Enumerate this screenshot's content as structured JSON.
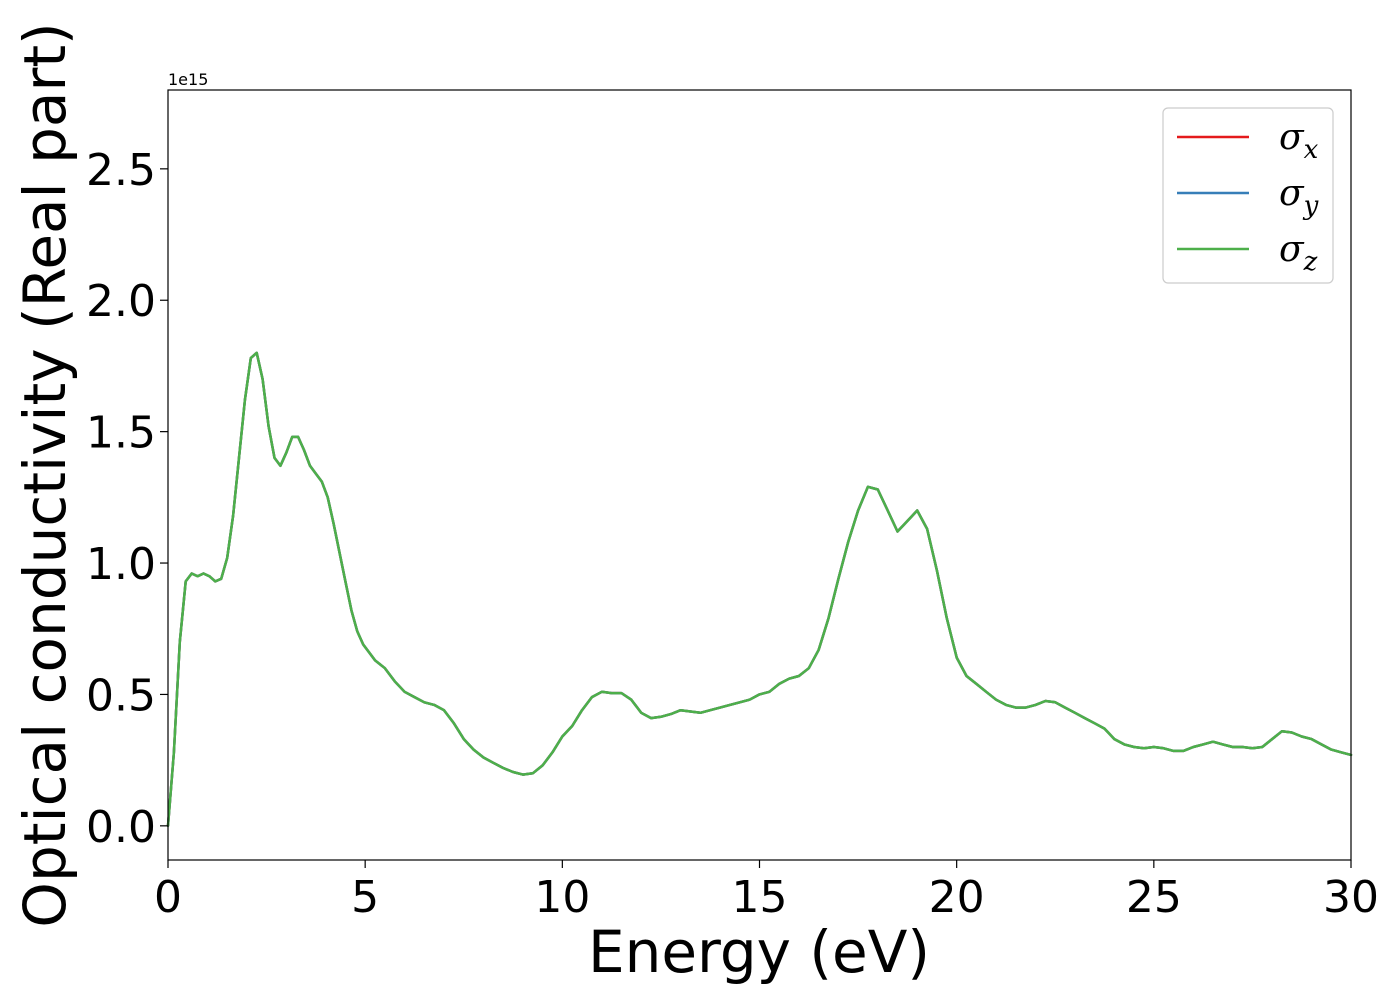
{
  "chart_data": {
    "type": "line",
    "xlabel": "Energy (eV)",
    "ylabel": "Optical conductivity (Real part)",
    "y_offset_label": "1e15",
    "xlim": [
      0,
      30
    ],
    "ylim": [
      -0.13,
      2.8
    ],
    "xticks": [
      0,
      5,
      10,
      15,
      20,
      25,
      30
    ],
    "yticks": [
      0.0,
      0.5,
      1.0,
      1.5,
      2.0,
      2.5
    ],
    "xtick_labels": [
      "0",
      "5",
      "10",
      "15",
      "20",
      "25",
      "30"
    ],
    "ytick_labels": [
      "0.0",
      "0.5",
      "1.0",
      "1.5",
      "2.0",
      "2.5"
    ],
    "grid": false,
    "legend_position": "top-right",
    "colors": {
      "sigma_x": "#e41a1c",
      "sigma_y": "#377eb8",
      "sigma_z": "#4daf4a"
    },
    "x": [
      0,
      0.15,
      0.3,
      0.45,
      0.6,
      0.75,
      0.9,
      1.05,
      1.2,
      1.35,
      1.5,
      1.65,
      1.8,
      1.95,
      2.1,
      2.25,
      2.4,
      2.55,
      2.7,
      2.85,
      3.0,
      3.15,
      3.3,
      3.45,
      3.6,
      3.75,
      3.9,
      4.05,
      4.2,
      4.35,
      4.5,
      4.65,
      4.8,
      4.95,
      5.1,
      5.25,
      5.5,
      5.75,
      6.0,
      6.25,
      6.5,
      6.75,
      7.0,
      7.25,
      7.5,
      7.75,
      8.0,
      8.25,
      8.5,
      8.75,
      9.0,
      9.25,
      9.5,
      9.75,
      10.0,
      10.25,
      10.5,
      10.75,
      11.0,
      11.25,
      11.5,
      11.75,
      12.0,
      12.25,
      12.5,
      12.75,
      13.0,
      13.25,
      13.5,
      13.75,
      14.0,
      14.25,
      14.5,
      14.75,
      15.0,
      15.25,
      15.5,
      15.75,
      16.0,
      16.25,
      16.5,
      16.75,
      17.0,
      17.25,
      17.5,
      17.75,
      18.0,
      18.25,
      18.5,
      18.75,
      19.0,
      19.25,
      19.5,
      19.75,
      20.0,
      20.25,
      20.5,
      20.75,
      21.0,
      21.25,
      21.5,
      21.75,
      22.0,
      22.25,
      22.5,
      22.75,
      23.0,
      23.25,
      23.5,
      23.75,
      24.0,
      24.25,
      24.5,
      24.75,
      25.0,
      25.25,
      25.5,
      25.75,
      26.0,
      26.25,
      26.5,
      26.75,
      27.0,
      27.25,
      27.5,
      27.75,
      28.0,
      28.25,
      28.5,
      28.75,
      29.0,
      29.25,
      29.5,
      29.75,
      30.0
    ],
    "series": [
      {
        "name": "σx",
        "label_base": "σ",
        "label_sub": "x",
        "values": [
          0.0,
          0.28,
          0.7,
          0.93,
          0.96,
          0.95,
          0.96,
          0.95,
          0.93,
          0.94,
          1.02,
          1.18,
          1.4,
          1.62,
          1.78,
          1.8,
          1.7,
          1.52,
          1.4,
          1.37,
          1.42,
          1.48,
          1.48,
          1.43,
          1.37,
          1.34,
          1.31,
          1.25,
          1.15,
          1.04,
          0.93,
          0.82,
          0.74,
          0.69,
          0.66,
          0.63,
          0.6,
          0.55,
          0.51,
          0.49,
          0.47,
          0.46,
          0.44,
          0.39,
          0.33,
          0.29,
          0.26,
          0.24,
          0.22,
          0.205,
          0.195,
          0.2,
          0.23,
          0.28,
          0.34,
          0.38,
          0.44,
          0.49,
          0.51,
          0.505,
          0.505,
          0.48,
          0.43,
          0.41,
          0.415,
          0.425,
          0.44,
          0.435,
          0.43,
          0.44,
          0.45,
          0.46,
          0.47,
          0.48,
          0.5,
          0.51,
          0.54,
          0.56,
          0.57,
          0.6,
          0.67,
          0.79,
          0.94,
          1.08,
          1.2,
          1.29,
          1.28,
          1.2,
          1.12,
          1.16,
          1.2,
          1.13,
          0.97,
          0.79,
          0.64,
          0.57,
          0.54,
          0.51,
          0.48,
          0.46,
          0.45,
          0.45,
          0.46,
          0.475,
          0.47,
          0.45,
          0.43,
          0.41,
          0.39,
          0.37,
          0.33,
          0.31,
          0.3,
          0.295,
          0.3,
          0.295,
          0.285,
          0.285,
          0.3,
          0.31,
          0.32,
          0.31,
          0.3,
          0.3,
          0.295,
          0.3,
          0.33,
          0.36,
          0.355,
          0.34,
          0.33,
          0.31,
          0.29,
          0.28,
          0.27
        ]
      },
      {
        "name": "σy",
        "label_base": "σ",
        "label_sub": "y",
        "values": [
          0.0,
          0.28,
          0.7,
          0.93,
          0.96,
          0.95,
          0.96,
          0.95,
          0.93,
          0.94,
          1.02,
          1.18,
          1.4,
          1.62,
          1.78,
          1.8,
          1.7,
          1.52,
          1.4,
          1.37,
          1.42,
          1.48,
          1.48,
          1.43,
          1.37,
          1.34,
          1.31,
          1.25,
          1.15,
          1.04,
          0.93,
          0.82,
          0.74,
          0.69,
          0.66,
          0.63,
          0.6,
          0.55,
          0.51,
          0.49,
          0.47,
          0.46,
          0.44,
          0.39,
          0.33,
          0.29,
          0.26,
          0.24,
          0.22,
          0.205,
          0.195,
          0.2,
          0.23,
          0.28,
          0.34,
          0.38,
          0.44,
          0.49,
          0.51,
          0.505,
          0.505,
          0.48,
          0.43,
          0.41,
          0.415,
          0.425,
          0.44,
          0.435,
          0.43,
          0.44,
          0.45,
          0.46,
          0.47,
          0.48,
          0.5,
          0.51,
          0.54,
          0.56,
          0.57,
          0.6,
          0.67,
          0.79,
          0.94,
          1.08,
          1.2,
          1.29,
          1.28,
          1.2,
          1.12,
          1.16,
          1.2,
          1.13,
          0.97,
          0.79,
          0.64,
          0.57,
          0.54,
          0.51,
          0.48,
          0.46,
          0.45,
          0.45,
          0.46,
          0.475,
          0.47,
          0.45,
          0.43,
          0.41,
          0.39,
          0.37,
          0.33,
          0.31,
          0.3,
          0.295,
          0.3,
          0.295,
          0.285,
          0.285,
          0.3,
          0.31,
          0.32,
          0.31,
          0.3,
          0.3,
          0.295,
          0.3,
          0.33,
          0.36,
          0.355,
          0.34,
          0.33,
          0.31,
          0.29,
          0.28,
          0.27
        ]
      },
      {
        "name": "σz",
        "label_base": "σ",
        "label_sub": "z",
        "values": [
          0.0,
          0.28,
          0.7,
          0.93,
          0.96,
          0.95,
          0.96,
          0.95,
          0.93,
          0.94,
          1.02,
          1.18,
          1.4,
          1.62,
          1.78,
          1.8,
          1.7,
          1.52,
          1.4,
          1.37,
          1.42,
          1.48,
          1.48,
          1.43,
          1.37,
          1.34,
          1.31,
          1.25,
          1.15,
          1.04,
          0.93,
          0.82,
          0.74,
          0.69,
          0.66,
          0.63,
          0.6,
          0.55,
          0.51,
          0.49,
          0.47,
          0.46,
          0.44,
          0.39,
          0.33,
          0.29,
          0.26,
          0.24,
          0.22,
          0.205,
          0.195,
          0.2,
          0.23,
          0.28,
          0.34,
          0.38,
          0.44,
          0.49,
          0.51,
          0.505,
          0.505,
          0.48,
          0.43,
          0.41,
          0.415,
          0.425,
          0.44,
          0.435,
          0.43,
          0.44,
          0.45,
          0.46,
          0.47,
          0.48,
          0.5,
          0.51,
          0.54,
          0.56,
          0.57,
          0.6,
          0.67,
          0.79,
          0.94,
          1.08,
          1.2,
          1.29,
          1.28,
          1.2,
          1.12,
          1.16,
          1.2,
          1.13,
          0.97,
          0.79,
          0.64,
          0.57,
          0.54,
          0.51,
          0.48,
          0.46,
          0.45,
          0.45,
          0.46,
          0.475,
          0.47,
          0.45,
          0.43,
          0.41,
          0.39,
          0.37,
          0.33,
          0.31,
          0.3,
          0.295,
          0.3,
          0.295,
          0.285,
          0.285,
          0.3,
          0.31,
          0.32,
          0.31,
          0.3,
          0.3,
          0.295,
          0.3,
          0.33,
          0.36,
          0.355,
          0.34,
          0.33,
          0.31,
          0.29,
          0.28,
          0.27
        ]
      }
    ]
  }
}
